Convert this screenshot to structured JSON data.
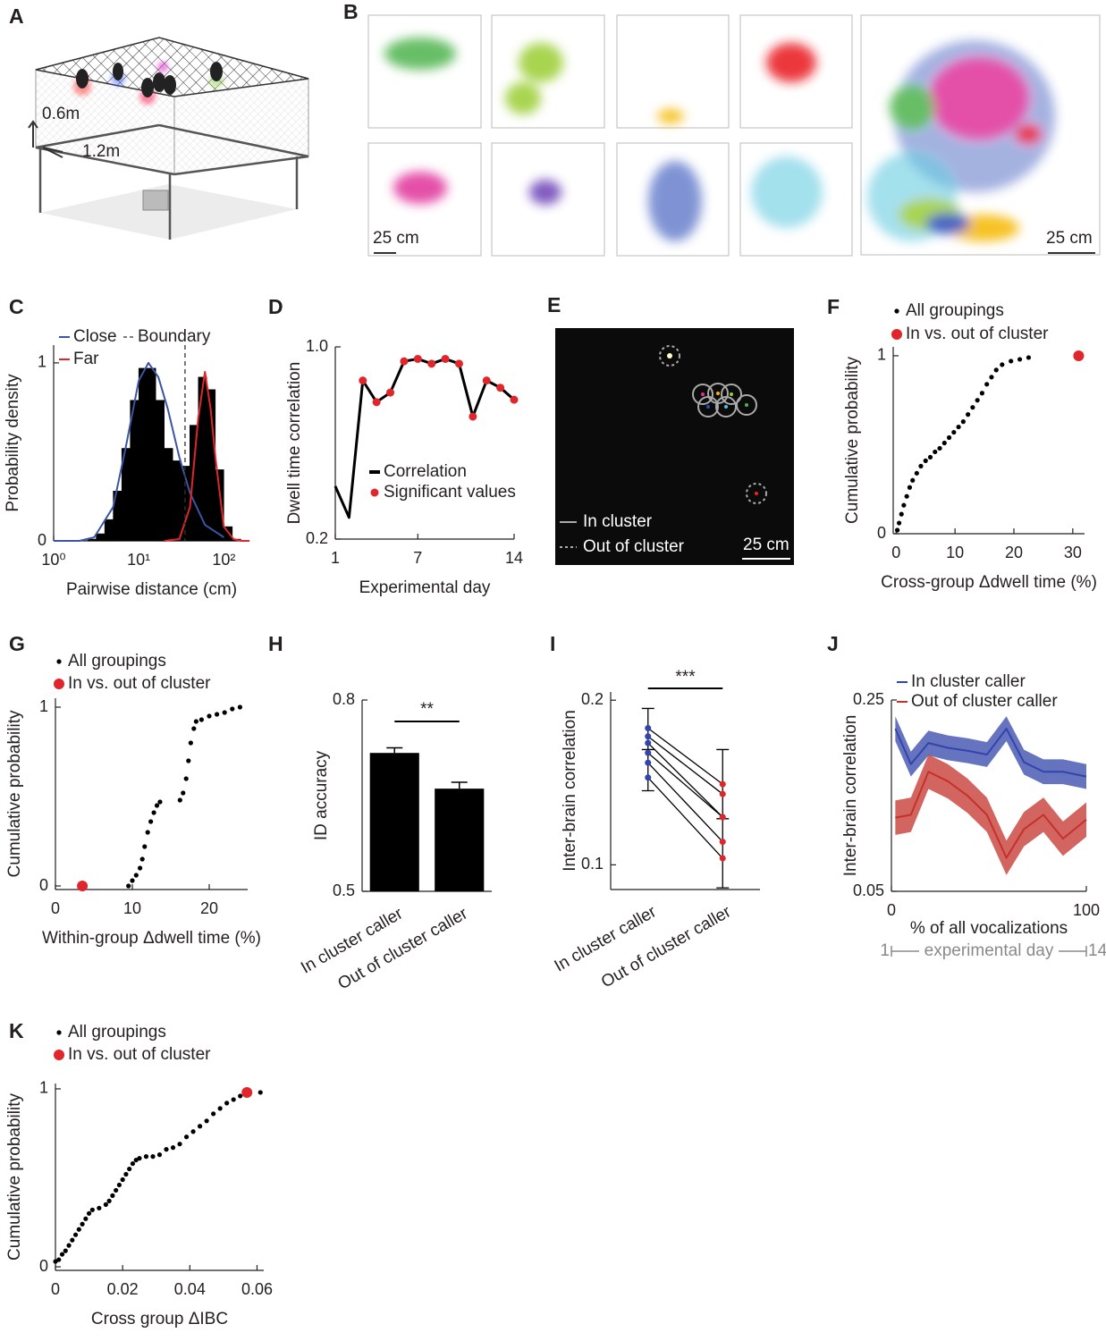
{
  "setup_diagram": {
    "panel": "A",
    "height_label": "0.6m",
    "width_label": "1.2m"
  },
  "position_maps": {
    "panel": "B",
    "scale_labels": [
      "25 cm",
      "25 cm"
    ]
  },
  "cluster_image": {
    "panel": "E",
    "legend": [
      "In cluster",
      "Out of cluster"
    ],
    "scale_label": "25 cm"
  },
  "chart_data": [
    {
      "panel": "C",
      "type": "histogram",
      "xscale": "log",
      "xlabel": "Pairwise distance (cm)",
      "ylabel": "Probability density",
      "xlim": [
        1,
        200
      ],
      "ylim": [
        0,
        1.1
      ],
      "xticks": [
        {
          "value": 1,
          "label": "10⁰"
        },
        {
          "value": 10,
          "label": "10¹"
        },
        {
          "value": 100,
          "label": "10²"
        }
      ],
      "yticks": [
        0,
        1
      ],
      "bins": [
        2,
        2.51,
        3.16,
        3.98,
        5.01,
        6.31,
        7.94,
        10,
        12.59,
        15.85,
        19.95,
        25.12,
        31.62,
        39.81,
        50.12,
        63.1,
        79.43,
        100,
        125.89,
        158.49,
        199.53
      ],
      "values": [
        0,
        0.01,
        0.04,
        0.12,
        0.28,
        0.52,
        0.79,
        0.97,
        0.97,
        0.79,
        0.52,
        0.45,
        0.42,
        0.65,
        0.92,
        0.85,
        0.4,
        0.08,
        0.01,
        0
      ],
      "color": "#000000",
      "series": [
        {
          "name": "Close",
          "color": "#3a55a4",
          "x": [
            1,
            2,
            3,
            5,
            7,
            10,
            13,
            17,
            22,
            30,
            40,
            60,
            100
          ],
          "values": [
            0,
            0,
            0.02,
            0.19,
            0.52,
            0.9,
            1,
            0.92,
            0.74,
            0.47,
            0.27,
            0.09,
            0.02
          ]
        },
        {
          "name": "Far",
          "color": "#e0262b",
          "x": [
            20,
            30,
            40,
            50,
            60,
            70,
            80,
            100,
            130,
            160,
            200
          ],
          "values": [
            0,
            0.01,
            0.19,
            0.69,
            0.95,
            0.74,
            0.46,
            0.08,
            0.01,
            0,
            0
          ]
        }
      ],
      "boundary": {
        "label": "Boundary",
        "value": 35
      }
    },
    {
      "panel": "D",
      "type": "line",
      "xlabel": "Experimental day",
      "ylabel": "Dwell time correlation",
      "x": [
        1,
        2,
        3,
        4,
        5,
        6,
        7,
        8,
        9,
        10,
        11,
        12,
        13,
        14
      ],
      "xlim": [
        1,
        14
      ],
      "ylim": [
        0.2,
        1.0
      ],
      "xticks": [
        1,
        7,
        14
      ],
      "yticks": [
        0.2,
        {
          "value": 1,
          "label": "1.0"
        }
      ],
      "series": [
        {
          "name": "Correlation",
          "color": "#000000",
          "style": "line",
          "values": [
            0.42,
            0.29,
            0.86,
            0.77,
            0.81,
            0.94,
            0.95,
            0.93,
            0.95,
            0.93,
            0.71,
            0.86,
            0.83,
            0.78
          ]
        },
        {
          "name": "Significant values",
          "color": "#e0262b",
          "style": "points",
          "values": [
            null,
            null,
            0.86,
            0.77,
            0.81,
            0.94,
            0.95,
            0.93,
            0.95,
            0.93,
            0.71,
            0.86,
            0.83,
            0.78
          ]
        }
      ]
    },
    {
      "panel": "F",
      "type": "scatter",
      "xlabel": "Cross-group Δdwell time (%)",
      "ylabel": "Cumulative probability",
      "xlim": [
        -0.5,
        32
      ],
      "ylim": [
        0,
        1.05
      ],
      "xticks": [
        0,
        10,
        20,
        30
      ],
      "yticks": [
        0,
        1
      ],
      "series": [
        {
          "name": "All groupings",
          "color": "#000000",
          "x": [
            0.2,
            0.5,
            0.9,
            1.3,
            1.8,
            2.3,
            2.8,
            3.5,
            4.2,
            5,
            5.8,
            6.6,
            7.4,
            8.2,
            9,
            9.8,
            10.6,
            11.4,
            12.2,
            13,
            13.8,
            14.6,
            15.4,
            16.2,
            17,
            18,
            19.5,
            21,
            22.5
          ],
          "values": [
            0.02,
            0.06,
            0.11,
            0.16,
            0.21,
            0.26,
            0.3,
            0.34,
            0.38,
            0.41,
            0.43,
            0.46,
            0.48,
            0.51,
            0.54,
            0.57,
            0.6,
            0.63,
            0.67,
            0.71,
            0.75,
            0.79,
            0.84,
            0.88,
            0.92,
            0.95,
            0.97,
            0.98,
            0.99
          ]
        },
        {
          "name": "In vs. out of cluster",
          "color": "#e0262b",
          "x": [
            31
          ],
          "values": [
            1
          ]
        }
      ]
    },
    {
      "panel": "G",
      "type": "scatter",
      "xlabel": "Within-group Δdwell time (%)",
      "ylabel": "Cumulative probability",
      "xlim": [
        0,
        25
      ],
      "ylim": [
        -0.02,
        1.05
      ],
      "xticks": [
        0,
        10,
        20
      ],
      "yticks": [
        0,
        1
      ],
      "series": [
        {
          "name": "All groupings",
          "color": "#000000",
          "x": [
            9.5,
            10,
            10.5,
            11,
            11.3,
            11.6,
            12,
            12.4,
            12.8,
            13.2,
            13.6,
            16.2,
            16.6,
            17,
            17.3,
            17.6,
            18,
            18.3,
            19,
            20,
            21,
            22,
            23,
            24
          ],
          "values": [
            0,
            0.03,
            0.06,
            0.1,
            0.15,
            0.22,
            0.3,
            0.36,
            0.41,
            0.45,
            0.47,
            0.48,
            0.52,
            0.6,
            0.7,
            0.8,
            0.88,
            0.92,
            0.93,
            0.95,
            0.96,
            0.97,
            0.99,
            1
          ]
        },
        {
          "name": "In vs. out of cluster",
          "color": "#e0262b",
          "x": [
            3.5
          ],
          "values": [
            0
          ]
        }
      ]
    },
    {
      "panel": "H",
      "type": "bar",
      "ylabel": "ID accuracy",
      "categories": [
        "In cluster caller",
        "Out of cluster caller"
      ],
      "values": [
        0.717,
        0.661
      ],
      "errors": [
        0.008,
        0.01
      ],
      "color": "#000000",
      "ylim": [
        0.5,
        0.8
      ],
      "yticks": [
        0.5,
        0.8
      ],
      "significance": "**"
    },
    {
      "panel": "I",
      "type": "paired",
      "ylabel": "Inter-brain correlation",
      "categories": [
        "In cluster caller",
        "Out of cluster caller"
      ],
      "subjects": [
        [
          0.183,
          0.149
        ],
        [
          0.178,
          0.143
        ],
        [
          0.174,
          0.129
        ],
        [
          0.168,
          0.129
        ],
        [
          0.162,
          0.114
        ],
        [
          0.153,
          0.104
        ]
      ],
      "means": [
        0.17,
        0.128
      ],
      "errors": [
        0.025,
        0.042
      ],
      "colors": [
        "#3344aa",
        "#e0262b"
      ],
      "ylim": [
        0.085,
        0.205
      ],
      "yticks": [
        0.1,
        0.2
      ],
      "significance": "***"
    },
    {
      "panel": "J",
      "type": "line",
      "xlabel": "% of all vocalizations",
      "ylabel": "Inter-brain correlation",
      "x": [
        2,
        10,
        19,
        29,
        39,
        49,
        59,
        68,
        78,
        88,
        100
      ],
      "xlim": [
        0,
        100
      ],
      "ylim": [
        0.05,
        0.25
      ],
      "xticks": [
        0,
        100
      ],
      "yticks": [
        0.05,
        0.25
      ],
      "series": [
        {
          "name": "In cluster caller",
          "color": "#3344aa",
          "values": [
            0.22,
            0.183,
            0.205,
            0.2,
            0.197,
            0.193,
            0.22,
            0.185,
            0.175,
            0.175,
            0.17
          ],
          "errors": [
            0.013,
            0.013,
            0.013,
            0.013,
            0.013,
            0.013,
            0.013,
            0.013,
            0.013,
            0.013,
            0.013
          ]
        },
        {
          "name": "Out of cluster caller",
          "color": "#c4312b",
          "values": [
            0.127,
            0.13,
            0.175,
            0.165,
            0.15,
            0.13,
            0.085,
            0.115,
            0.13,
            0.105,
            0.125
          ],
          "errors": [
            0.018,
            0.018,
            0.018,
            0.018,
            0.018,
            0.018,
            0.018,
            0.018,
            0.018,
            0.018,
            0.018
          ]
        }
      ],
      "note": {
        "start": "1",
        "label": "experimental day",
        "end": "14"
      }
    },
    {
      "panel": "K",
      "type": "scatter",
      "xlabel": "Cross group ΔIBC",
      "ylabel": "Cumulative probability",
      "xlim": [
        0,
        0.062
      ],
      "ylim": [
        -0.02,
        1.03
      ],
      "xticks": [
        0,
        0.02,
        0.04,
        0.06
      ],
      "yticks": [
        0,
        1
      ],
      "series": [
        {
          "name": "All groupings",
          "color": "#000000",
          "x": [
            0,
            0.001,
            0.002,
            0.003,
            0.004,
            0.005,
            0.006,
            0.007,
            0.008,
            0.009,
            0.01,
            0.011,
            0.013,
            0.015,
            0.016,
            0.017,
            0.018,
            0.019,
            0.02,
            0.021,
            0.022,
            0.023,
            0.024,
            0.025,
            0.027,
            0.029,
            0.031,
            0.033,
            0.035,
            0.037,
            0.039,
            0.041,
            0.043,
            0.045,
            0.047,
            0.049,
            0.051,
            0.053,
            0.055,
            0.061
          ],
          "values": [
            0.03,
            0.04,
            0.07,
            0.09,
            0.12,
            0.15,
            0.18,
            0.21,
            0.24,
            0.27,
            0.3,
            0.32,
            0.33,
            0.35,
            0.37,
            0.4,
            0.43,
            0.46,
            0.49,
            0.52,
            0.55,
            0.58,
            0.6,
            0.61,
            0.62,
            0.62,
            0.63,
            0.66,
            0.67,
            0.69,
            0.73,
            0.76,
            0.79,
            0.82,
            0.86,
            0.89,
            0.92,
            0.94,
            0.96,
            0.98
          ]
        },
        {
          "name": "In vs. out of cluster",
          "color": "#e0262b",
          "x": [
            0.057
          ],
          "values": [
            0.98
          ]
        }
      ]
    }
  ]
}
